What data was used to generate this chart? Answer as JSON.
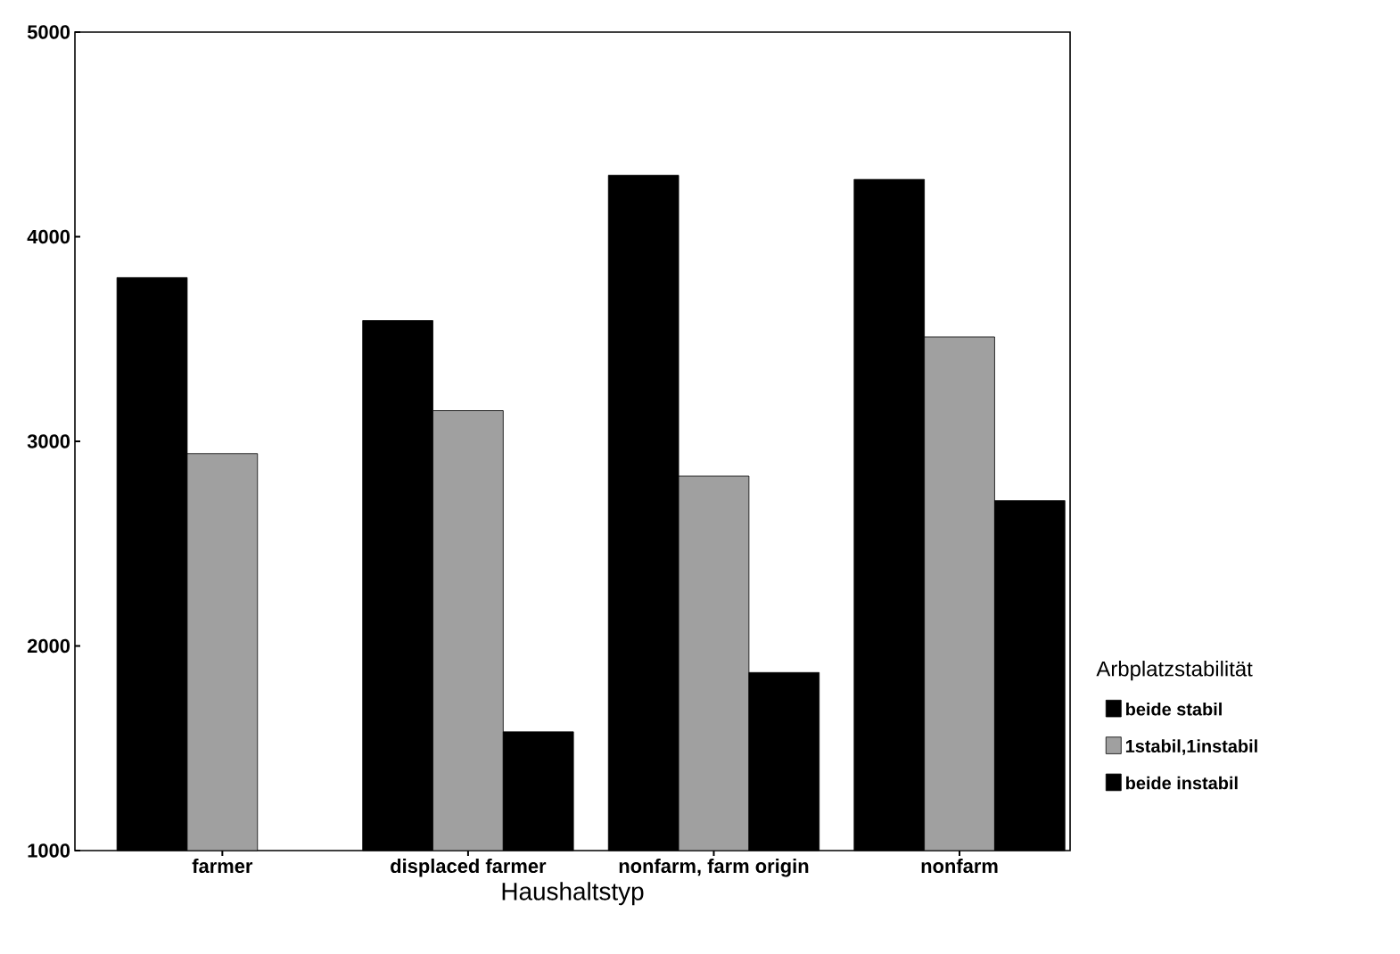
{
  "chart_data": {
    "type": "bar",
    "xlabel": "Haushaltstyp",
    "legend_title": "Arbplatzstabilität",
    "categories": [
      "farmer",
      "displaced farmer",
      "nonfarm, farm origin",
      "nonfarm"
    ],
    "series": [
      {
        "name": "beide stabil",
        "color": "#000000",
        "values": [
          3800,
          3590,
          4300,
          4280
        ]
      },
      {
        "name": "1stabil,1instabil",
        "color": "#a0a0a0",
        "values": [
          2940,
          3150,
          2830,
          3510
        ]
      },
      {
        "name": "beide instabil",
        "color": "#000000",
        "values": [
          null,
          1580,
          1870,
          2710
        ]
      }
    ],
    "ylim": [
      1000,
      5000
    ],
    "yticks": [
      1000,
      2000,
      3000,
      4000,
      5000
    ],
    "grid": false,
    "legend": "right"
  }
}
